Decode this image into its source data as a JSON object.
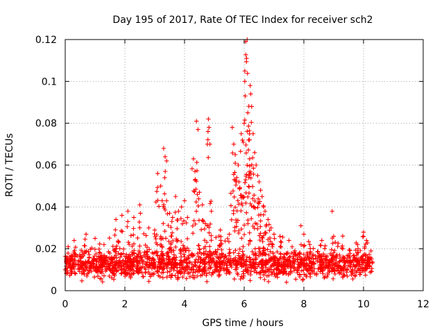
{
  "chart_data": {
    "type": "scatter",
    "title": "Day 195 of 2017, Rate Of TEC Index for receiver sch2",
    "xlabel": "GPS time / hours",
    "ylabel": "ROTI / TECUs",
    "xlim": [
      0,
      12
    ],
    "ylim": [
      0,
      0.12
    ],
    "grid": true,
    "marker": "+",
    "series_color": "#ff0000",
    "x_ticks": [
      "0",
      "2",
      "4",
      "6",
      "8",
      "10",
      "12"
    ],
    "y_ticks": [
      "0",
      "0.02",
      "0.04",
      "0.06",
      "0.08",
      "0.1",
      "0.12"
    ],
    "x_tick_values": [
      0,
      2,
      4,
      6,
      8,
      10,
      12
    ],
    "y_tick_values": [
      0,
      0.02,
      0.04,
      0.06,
      0.08,
      0.1,
      0.12
    ],
    "data_extent_x": [
      0,
      10.3
    ],
    "baseline_band": [
      0.003,
      0.022
    ],
    "points": [
      [
        0.1,
        0.021
      ],
      [
        0.3,
        0.024
      ],
      [
        0.7,
        0.027
      ],
      [
        1.0,
        0.025
      ],
      [
        1.3,
        0.022
      ],
      [
        1.7,
        0.034
      ],
      [
        1.9,
        0.036
      ],
      [
        2.1,
        0.038
      ],
      [
        2.3,
        0.035
      ],
      [
        2.5,
        0.041
      ],
      [
        2.8,
        0.03
      ],
      [
        3.0,
        0.029
      ],
      [
        3.1,
        0.056
      ],
      [
        3.2,
        0.05
      ],
      [
        3.25,
        0.043
      ],
      [
        3.3,
        0.068
      ],
      [
        3.35,
        0.064
      ],
      [
        3.4,
        0.062
      ],
      [
        3.5,
        0.037
      ],
      [
        3.6,
        0.035
      ],
      [
        3.7,
        0.045
      ],
      [
        3.8,
        0.038
      ],
      [
        3.9,
        0.04
      ],
      [
        4.0,
        0.043
      ],
      [
        4.1,
        0.035
      ],
      [
        4.3,
        0.063
      ],
      [
        4.35,
        0.057
      ],
      [
        4.4,
        0.081
      ],
      [
        4.45,
        0.077
      ],
      [
        4.5,
        0.047
      ],
      [
        4.6,
        0.041
      ],
      [
        4.7,
        0.032
      ],
      [
        4.8,
        0.082
      ],
      [
        4.82,
        0.078
      ],
      [
        4.85,
        0.07
      ],
      [
        4.9,
        0.038
      ],
      [
        5.2,
        0.029
      ],
      [
        5.5,
        0.027
      ],
      [
        5.6,
        0.078
      ],
      [
        5.65,
        0.07
      ],
      [
        5.7,
        0.065
      ],
      [
        5.75,
        0.054
      ],
      [
        5.8,
        0.06
      ],
      [
        5.85,
        0.049
      ],
      [
        5.9,
        0.075
      ],
      [
        5.95,
        0.045
      ],
      [
        6.0,
        0.08
      ],
      [
        6.02,
        0.1
      ],
      [
        6.05,
        0.119
      ],
      [
        6.08,
        0.111
      ],
      [
        6.1,
        0.12
      ],
      [
        6.12,
        0.085
      ],
      [
        6.15,
        0.072
      ],
      [
        6.18,
        0.063
      ],
      [
        6.2,
        0.098
      ],
      [
        6.22,
        0.094
      ],
      [
        6.25,
        0.088
      ],
      [
        6.3,
        0.075
      ],
      [
        6.35,
        0.066
      ],
      [
        6.4,
        0.06
      ],
      [
        6.45,
        0.055
      ],
      [
        6.5,
        0.052
      ],
      [
        6.55,
        0.048
      ],
      [
        6.6,
        0.045
      ],
      [
        6.65,
        0.04
      ],
      [
        6.7,
        0.038
      ],
      [
        6.8,
        0.034
      ],
      [
        6.9,
        0.03
      ],
      [
        7.0,
        0.027
      ],
      [
        7.2,
        0.026
      ],
      [
        7.5,
        0.024
      ],
      [
        7.9,
        0.031
      ],
      [
        8.0,
        0.027
      ],
      [
        8.2,
        0.022
      ],
      [
        8.6,
        0.024
      ],
      [
        8.95,
        0.038
      ],
      [
        9.0,
        0.026
      ],
      [
        9.3,
        0.02
      ],
      [
        9.8,
        0.022
      ],
      [
        10.0,
        0.028
      ],
      [
        10.1,
        0.024
      ],
      [
        10.25,
        0.019
      ]
    ]
  }
}
